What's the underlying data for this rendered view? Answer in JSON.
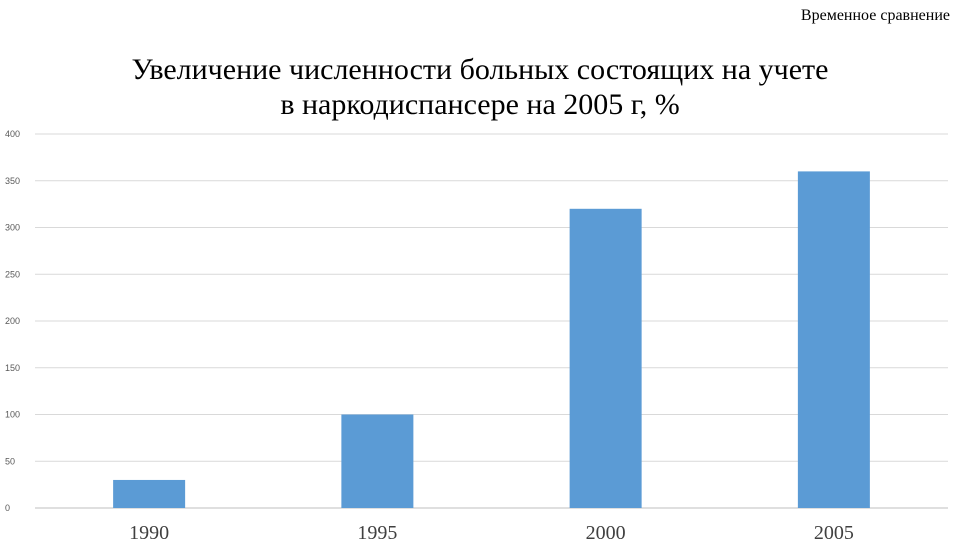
{
  "header": {
    "note": "Временное сравнение"
  },
  "chart_data": {
    "type": "bar",
    "title_lines": [
      "Увеличение численности больных состоящих на учете",
      "в наркодиспансере на 2005 г, %"
    ],
    "categories": [
      "1990",
      "1995",
      "2000",
      "2005"
    ],
    "values": [
      30,
      100,
      320,
      360
    ],
    "ylim": [
      0,
      400
    ],
    "yticks": [
      "0",
      "50",
      "100",
      "150",
      "200",
      "250",
      "300",
      "350",
      "400"
    ],
    "xlabel": "",
    "ylabel": "",
    "grid": true,
    "legend": "none",
    "bar_color": "#5b9bd5"
  }
}
